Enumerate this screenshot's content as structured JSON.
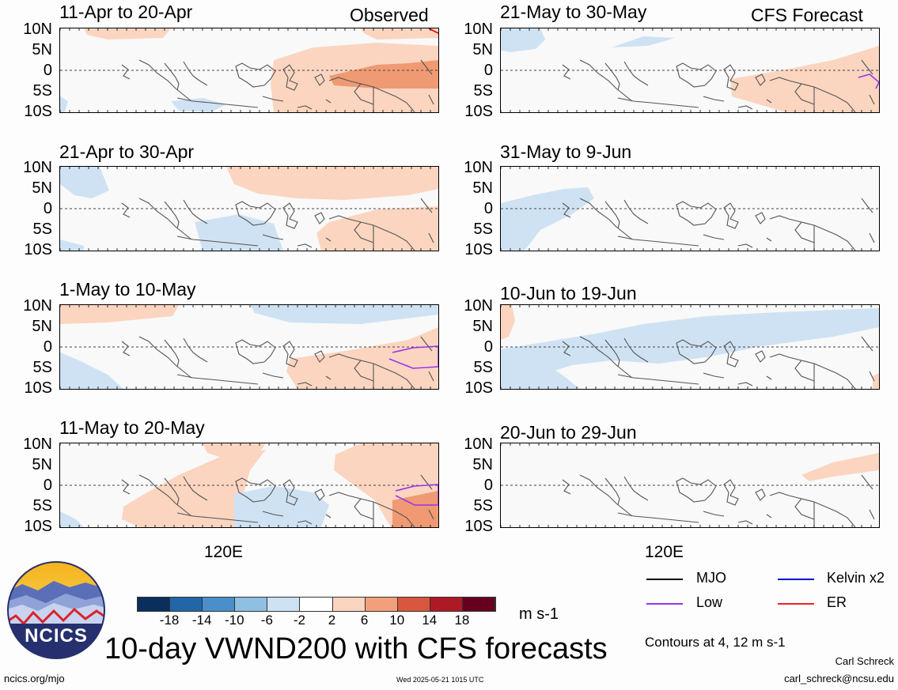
{
  "headers": {
    "observed": "Observed",
    "forecast": "CFS Forecast"
  },
  "y_ticks": [
    "10N",
    "5N",
    "0",
    "5S",
    "10S"
  ],
  "x_tick": "120E",
  "panels": {
    "obs": [
      {
        "period": "11-Apr to 20-Apr"
      },
      {
        "period": "21-Apr to 30-Apr"
      },
      {
        "period": "1-May to 10-May"
      },
      {
        "period": "11-May to 20-May"
      }
    ],
    "fcst": [
      {
        "period": "21-May to 30-May"
      },
      {
        "period": "31-May to 9-Jun"
      },
      {
        "period": "10-Jun to 19-Jun"
      },
      {
        "period": "20-Jun to 29-Jun"
      }
    ]
  },
  "colorbar": {
    "labels": [
      "-18",
      "-14",
      "-10",
      "-6",
      "-2",
      "2",
      "6",
      "10",
      "14",
      "18"
    ],
    "colors": [
      "#0b2f5c",
      "#2266a8",
      "#4a8fcb",
      "#8fbfe1",
      "#cfe2f3",
      "#ffffff",
      "#fbd5c0",
      "#f3a07a",
      "#d9573e",
      "#ad1a26",
      "#67001f"
    ],
    "units": "m s-1"
  },
  "legend": {
    "mjo": "MJO",
    "kelvin": "Kelvin x2",
    "low": "Low",
    "er": "ER",
    "colors": {
      "mjo": "#000000",
      "kelvin": "#0000cc",
      "low": "#9933ee",
      "er": "#ee2222"
    }
  },
  "logo": {
    "text": "NCICS"
  },
  "main_title": "10-day VWND200 with CFS forecasts",
  "contours_note": "Contours at 4, 12 m s-1",
  "footer": {
    "url": "ncics.org/mjo",
    "timestamp": "Wed 2025-05-21 1015 UTC",
    "author": "Carl Schreck",
    "email": "carl_schreck@ncsu.edu"
  }
}
